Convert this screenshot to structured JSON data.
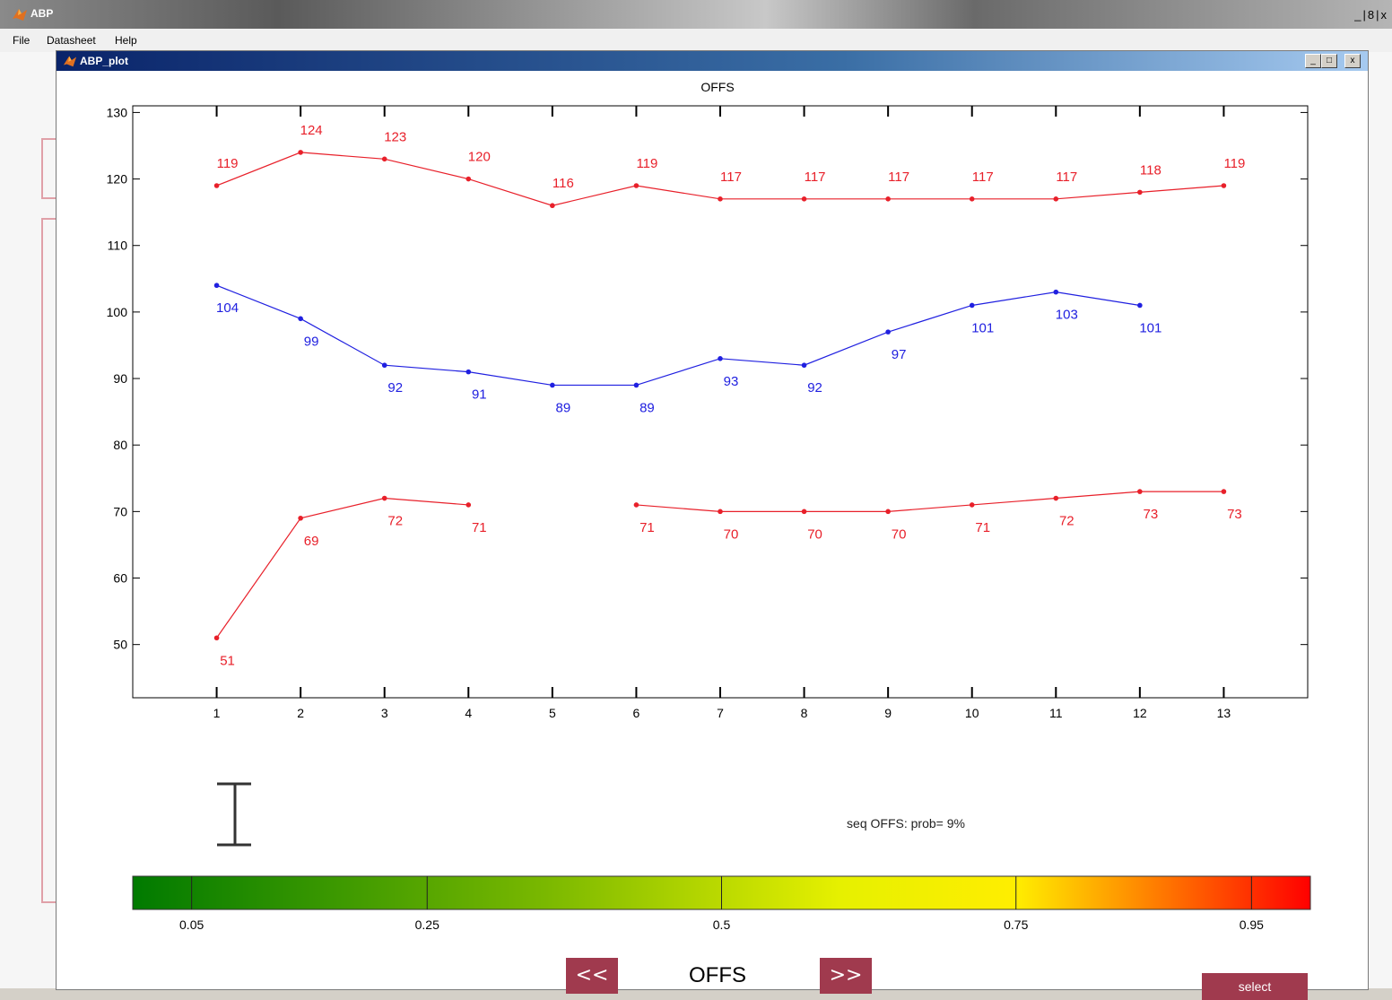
{
  "app": {
    "title": "ABP",
    "window_buttons": "_ Ꭰ x",
    "menu": [
      "File",
      "Datasheet",
      "Help"
    ]
  },
  "figure_window": {
    "title": "ABP_plot",
    "minimize": "_",
    "maximize": "□",
    "close": "x"
  },
  "chart_data": {
    "type": "line",
    "title": "OFFS",
    "xlabel": "",
    "ylabel": "",
    "xlim": [
      0,
      14
    ],
    "ylim": [
      42,
      131
    ],
    "xticks": [
      1,
      2,
      3,
      4,
      5,
      6,
      7,
      8,
      9,
      10,
      11,
      12,
      13
    ],
    "yticks": [
      50,
      60,
      70,
      80,
      90,
      100,
      110,
      120,
      130
    ],
    "grid": false,
    "legend": "none",
    "series": [
      {
        "color": "#e8202a",
        "x": [
          1,
          2,
          3,
          4,
          5,
          6,
          7,
          8,
          9,
          10,
          11,
          12,
          13
        ],
        "values": [
          119,
          124,
          123,
          120,
          116,
          119,
          117,
          117,
          117,
          117,
          117,
          118,
          119
        ],
        "labels": [
          "119",
          "124",
          "123",
          "120",
          "116",
          "119",
          "117",
          "117",
          "117",
          "117",
          "117",
          "118",
          "119"
        ],
        "label_position": "above"
      },
      {
        "color": "#2020e0",
        "x": [
          1,
          2,
          3,
          4,
          5,
          6,
          7,
          8,
          9,
          10,
          11,
          12
        ],
        "values": [
          104,
          99,
          92,
          91,
          89,
          89,
          93,
          92,
          97,
          101,
          103,
          101
        ],
        "labels": [
          "104",
          "99",
          "92",
          "91",
          "89",
          "89",
          "93",
          "92",
          "97",
          "101",
          "103",
          "101"
        ],
        "label_position": "below"
      },
      {
        "color": "#e8202a",
        "x": [
          1,
          2,
          3,
          4,
          null,
          6,
          7,
          8,
          9,
          10,
          11,
          12,
          13
        ],
        "values": [
          51,
          69,
          72,
          71,
          null,
          71,
          70,
          70,
          70,
          71,
          72,
          73,
          73
        ],
        "labels": [
          "51",
          "69",
          "72",
          "71",
          "",
          "71",
          "70",
          "70",
          "70",
          "71",
          "72",
          "73",
          "73"
        ],
        "label_position": "below"
      }
    ]
  },
  "probability": {
    "text": "seq OFFS: prob= 9%",
    "colorbar_ticks": [
      "0.05",
      "0.25",
      "0.5",
      "0.75",
      "0.95"
    ],
    "colorbar_tick_values": [
      0.05,
      0.25,
      0.5,
      0.75,
      0.95
    ],
    "colorbar_range": [
      0,
      1
    ],
    "colorbar_colors": [
      "#007a00",
      "#7ab800",
      "#e6f000",
      "#ffee00",
      "#ff0000"
    ]
  },
  "navigation": {
    "prev_label": "<<",
    "next_label": ">>",
    "current_label": "OFFS",
    "select_label": "select"
  }
}
